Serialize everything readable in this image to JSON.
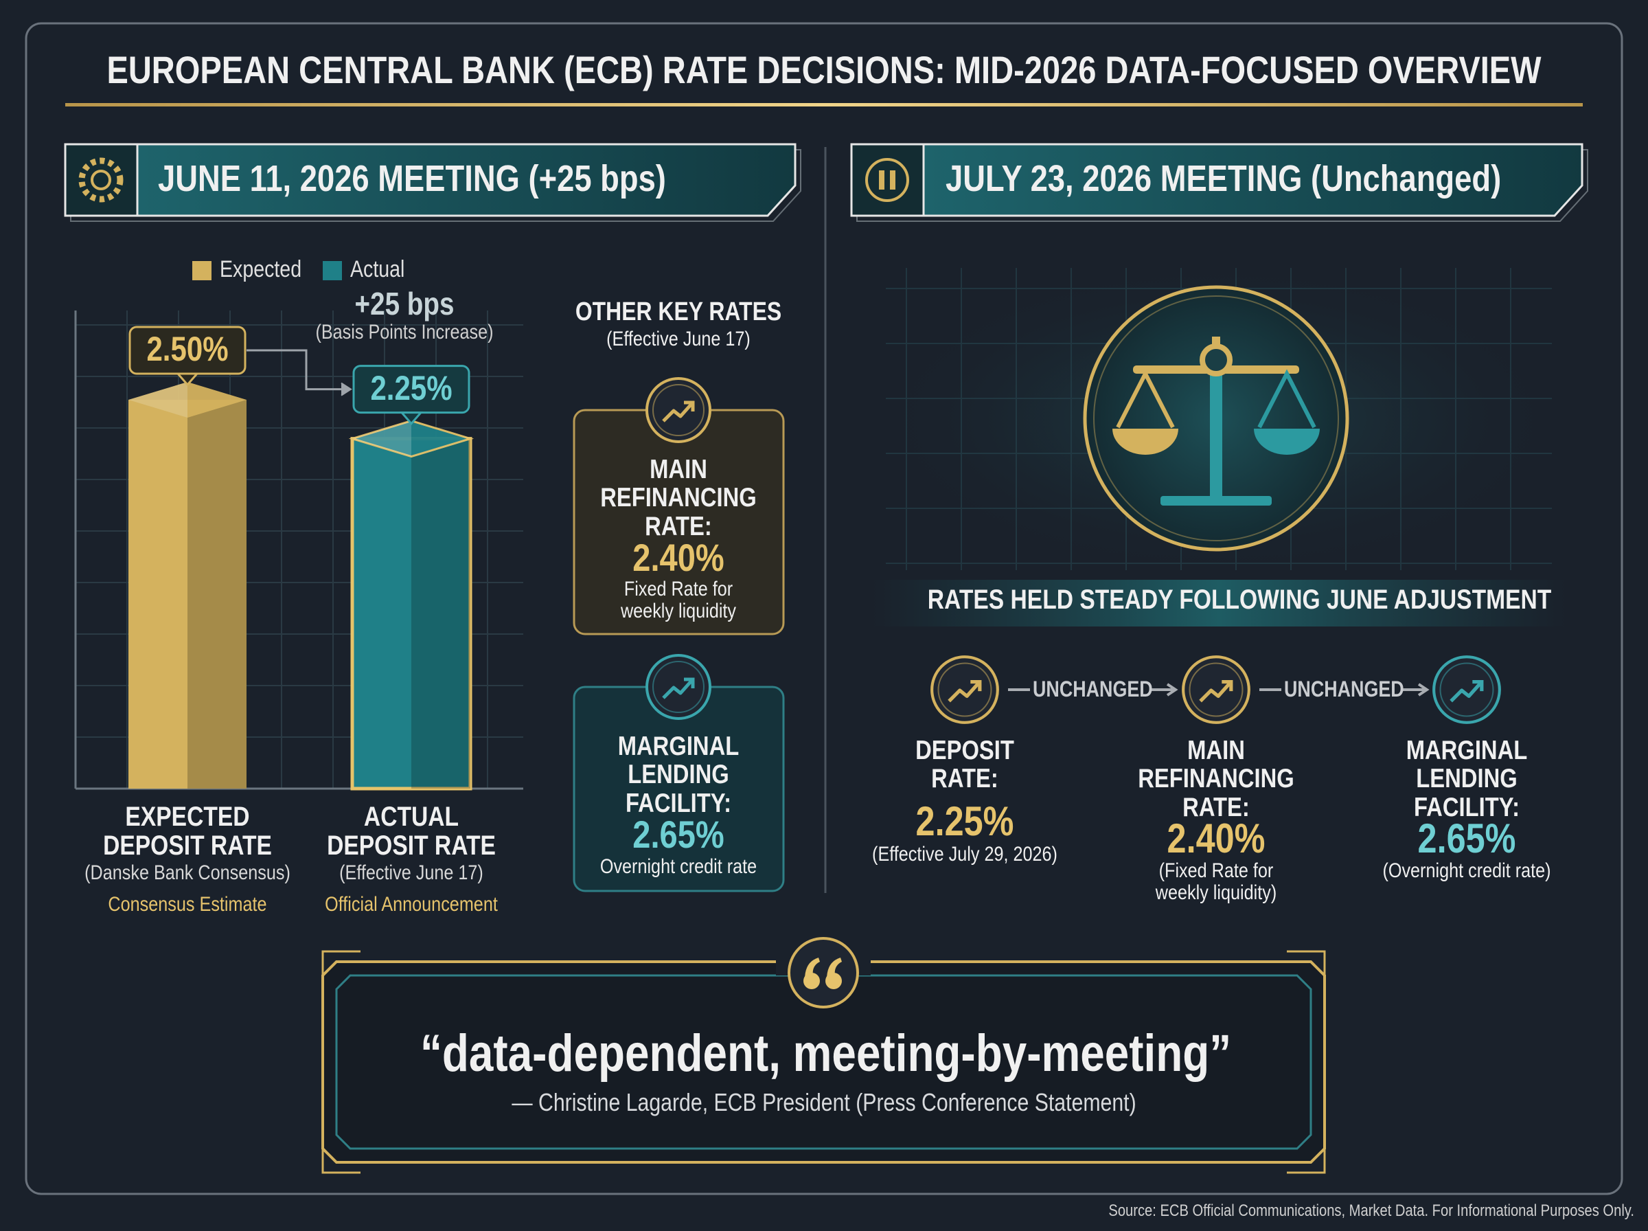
{
  "header": {
    "title": "EUROPEAN CENTRAL BANK (ECB) RATE DECISIONS: MID-2026 DATA-FOCUSED OVERVIEW"
  },
  "june": {
    "heading": "JUNE 11, 2026 MEETING (+25 bps)",
    "other_rates": {
      "title": "OTHER KEY RATES",
      "subtitle": "(Effective June 17)",
      "cards": [
        {
          "label": "MAIN REFINANCING RATE:",
          "value": "2.40%",
          "note": "Fixed Rate for weekly liquidity"
        },
        {
          "label": "MARGINAL LENDING FACILITY:",
          "value": "2.65%",
          "note": "Overnight credit rate"
        }
      ]
    }
  },
  "chart_data": {
    "type": "bar",
    "categories": [
      "EXPECTED DEPOSIT RATE",
      "ACTUAL DEPOSIT RATE"
    ],
    "category_notes": [
      "(Danske Bank Consensus)",
      "(Effective June 17)"
    ],
    "category_tags": [
      "Consensus Estimate",
      "Official Announcement"
    ],
    "series": [
      {
        "name": "Expected",
        "color": "#d4b25e",
        "values": [
          2.5,
          null
        ],
        "value_labels": [
          "2.50%",
          null
        ]
      },
      {
        "name": "Actual",
        "color": "#1f8088",
        "values": [
          null,
          2.25
        ],
        "value_labels": [
          null,
          "2.25%"
        ]
      }
    ],
    "annotation": {
      "text": "+25 bps",
      "subtext": "(Basis Points Increase)"
    },
    "legend": "top"
  },
  "july": {
    "heading": "JULY 23, 2026 MEETING (Unchanged)",
    "banner": "RATES HELD STEADY FOLLOWING JUNE ADJUSTMENT",
    "connectors": [
      "UNCHANGED",
      "UNCHANGED"
    ],
    "rates": [
      {
        "label": "DEPOSIT RATE:",
        "value": "2.25%",
        "note": "(Effective July 29, 2026)"
      },
      {
        "label": "MAIN REFINANCING RATE:",
        "value": "2.40%",
        "note": "(Fixed Rate for weekly liquidity)"
      },
      {
        "label": "MARGINAL LENDING FACILITY:",
        "value": "2.65%",
        "note": "(Overnight credit rate)"
      }
    ]
  },
  "quote": {
    "text": "“data-dependent, meeting-by-meeting”",
    "attribution": "— Christine Lagarde, ECB President (Press Conference Statement)"
  },
  "footer": {
    "source": "Source: ECB Official Communications, Market Data. For Informational Purposes Only."
  }
}
